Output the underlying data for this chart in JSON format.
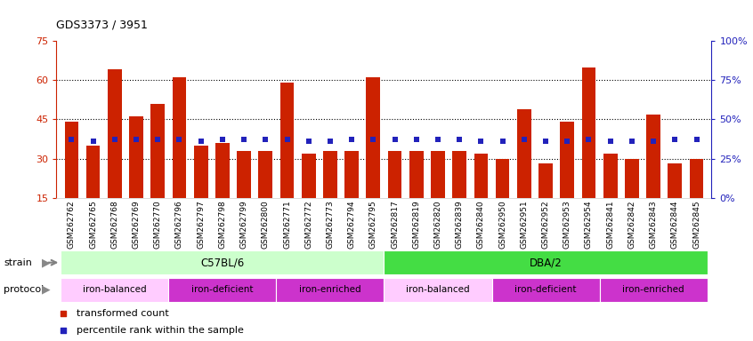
{
  "title": "GDS3373 / 3951",
  "samples": [
    "GSM262762",
    "GSM262765",
    "GSM262768",
    "GSM262769",
    "GSM262770",
    "GSM262796",
    "GSM262797",
    "GSM262798",
    "GSM262799",
    "GSM262800",
    "GSM262771",
    "GSM262772",
    "GSM262773",
    "GSM262794",
    "GSM262795",
    "GSM262817",
    "GSM262819",
    "GSM262820",
    "GSM262839",
    "GSM262840",
    "GSM262950",
    "GSM262951",
    "GSM262952",
    "GSM262953",
    "GSM262954",
    "GSM262841",
    "GSM262842",
    "GSM262843",
    "GSM262844",
    "GSM262845"
  ],
  "bar_values": [
    44,
    35,
    64,
    46,
    51,
    61,
    35,
    36,
    33,
    33,
    59,
    32,
    33,
    33,
    61,
    33,
    33,
    33,
    33,
    32,
    30,
    49,
    28,
    44,
    65,
    32,
    30,
    47,
    28,
    30
  ],
  "percentile_values": [
    37,
    36,
    37,
    37,
    37,
    37,
    36,
    37,
    37,
    37,
    37,
    36,
    36,
    37,
    37,
    37,
    37,
    37,
    37,
    36,
    36,
    37,
    36,
    36,
    37,
    36,
    36,
    36,
    37,
    37
  ],
  "bar_color": "#cc2200",
  "dot_color": "#2222bb",
  "ylim_left": [
    15,
    75
  ],
  "ylim_right": [
    0,
    100
  ],
  "yticks_left": [
    15,
    30,
    45,
    60,
    75
  ],
  "yticks_right": [
    0,
    25,
    50,
    75,
    100
  ],
  "ytick_labels_right": [
    "0%",
    "25%",
    "50%",
    "75%",
    "100%"
  ],
  "grid_values": [
    30,
    45,
    60
  ],
  "strain_groups": [
    {
      "label": "C57BL/6",
      "start": 0,
      "end": 15,
      "color": "#ccffcc"
    },
    {
      "label": "DBA/2",
      "start": 15,
      "end": 30,
      "color": "#44dd44"
    }
  ],
  "protocol_groups": [
    {
      "label": "iron-balanced",
      "start": 0,
      "end": 5,
      "color": "#ffccff"
    },
    {
      "label": "iron-deficient",
      "start": 5,
      "end": 10,
      "color": "#dd44dd"
    },
    {
      "label": "iron-enriched",
      "start": 10,
      "end": 15,
      "color": "#dd44dd"
    },
    {
      "label": "iron-balanced",
      "start": 15,
      "end": 20,
      "color": "#ffccff"
    },
    {
      "label": "iron-deficient",
      "start": 20,
      "end": 25,
      "color": "#dd44dd"
    },
    {
      "label": "iron-enriched",
      "start": 25,
      "end": 30,
      "color": "#dd44dd"
    }
  ]
}
